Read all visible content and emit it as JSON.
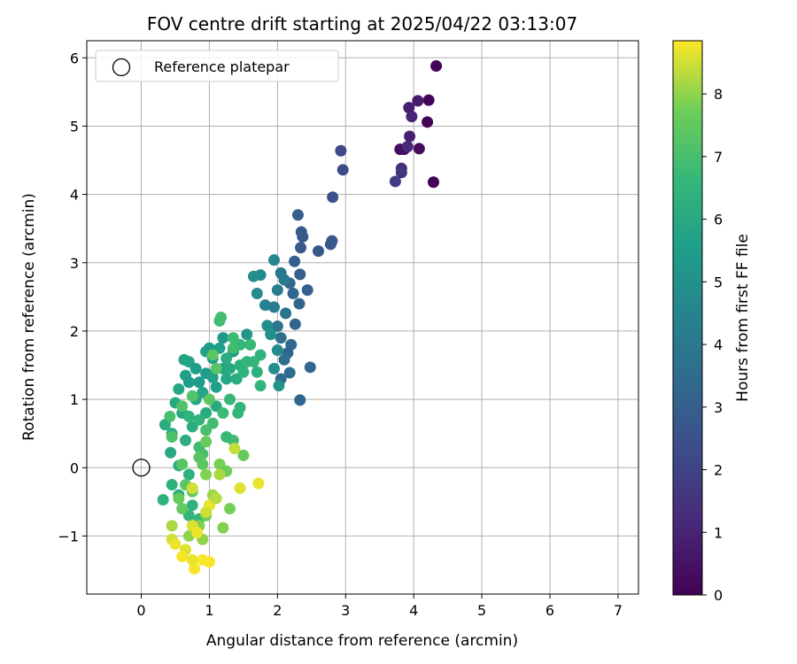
{
  "chart_data": {
    "type": "scatter",
    "title": "FOV centre drift starting at 2025/04/22 03:13:07",
    "xlabel": "Angular distance from reference (arcmin)",
    "ylabel": "Rotation from reference (arcmin)",
    "xlim": [
      -0.8,
      7.3
    ],
    "ylim": [
      -1.85,
      6.25
    ],
    "xticks": [
      0,
      1,
      2,
      3,
      4,
      5,
      6,
      7
    ],
    "yticks": [
      -1,
      0,
      1,
      2,
      3,
      4,
      5,
      6
    ],
    "grid": true,
    "legend": {
      "placement": "upper-left",
      "entries": [
        "Reference platepar"
      ]
    },
    "reference_point": {
      "x": 0,
      "y": 0,
      "label": "Reference platepar"
    },
    "colorbar": {
      "label": "Hours from first FF file",
      "colormap": "viridis",
      "range": [
        0,
        8.85
      ],
      "ticks": [
        0,
        1,
        2,
        3,
        4,
        5,
        6,
        7,
        8
      ]
    },
    "points": [
      {
        "x": 4.33,
        "y": 5.88,
        "t": 0.1
      },
      {
        "x": 4.22,
        "y": 5.38,
        "t": 0.1
      },
      {
        "x": 4.2,
        "y": 5.06,
        "t": 0.1
      },
      {
        "x": 4.29,
        "y": 4.18,
        "t": 0.1
      },
      {
        "x": 4.08,
        "y": 4.67,
        "t": 0.25
      },
      {
        "x": 3.8,
        "y": 4.66,
        "t": 0.3
      },
      {
        "x": 3.86,
        "y": 4.66,
        "t": 0.4
      },
      {
        "x": 4.06,
        "y": 5.37,
        "t": 0.7
      },
      {
        "x": 3.93,
        "y": 5.27,
        "t": 0.8
      },
      {
        "x": 3.94,
        "y": 4.85,
        "t": 0.9
      },
      {
        "x": 3.97,
        "y": 5.14,
        "t": 1.0
      },
      {
        "x": 3.91,
        "y": 4.7,
        "t": 1.1
      },
      {
        "x": 3.82,
        "y": 4.38,
        "t": 1.3
      },
      {
        "x": 3.82,
        "y": 4.32,
        "t": 1.5
      },
      {
        "x": 3.73,
        "y": 4.19,
        "t": 1.8
      },
      {
        "x": 2.93,
        "y": 4.64,
        "t": 2.2
      },
      {
        "x": 2.96,
        "y": 4.36,
        "t": 2.3
      },
      {
        "x": 2.81,
        "y": 3.96,
        "t": 2.5
      },
      {
        "x": 2.8,
        "y": 3.32,
        "t": 2.7
      },
      {
        "x": 2.78,
        "y": 3.27,
        "t": 2.7
      },
      {
        "x": 2.6,
        "y": 3.17,
        "t": 2.7
      },
      {
        "x": 2.35,
        "y": 3.45,
        "t": 2.8
      },
      {
        "x": 2.37,
        "y": 3.38,
        "t": 2.8
      },
      {
        "x": 2.3,
        "y": 3.7,
        "t": 3.0
      },
      {
        "x": 2.34,
        "y": 3.22,
        "t": 2.8
      },
      {
        "x": 2.25,
        "y": 3.02,
        "t": 3.0
      },
      {
        "x": 2.33,
        "y": 2.83,
        "t": 3.0
      },
      {
        "x": 2.44,
        "y": 2.6,
        "t": 3.0
      },
      {
        "x": 2.32,
        "y": 2.4,
        "t": 3.2
      },
      {
        "x": 2.23,
        "y": 2.55,
        "t": 3.3
      },
      {
        "x": 2.18,
        "y": 2.7,
        "t": 3.4
      },
      {
        "x": 2.26,
        "y": 2.1,
        "t": 3.2
      },
      {
        "x": 2.2,
        "y": 1.8,
        "t": 3.3
      },
      {
        "x": 2.15,
        "y": 1.68,
        "t": 3.2
      },
      {
        "x": 2.48,
        "y": 1.47,
        "t": 3.3
      },
      {
        "x": 2.33,
        "y": 0.99,
        "t": 3.3
      },
      {
        "x": 2.05,
        "y": 1.3,
        "t": 3.5
      },
      {
        "x": 2.18,
        "y": 1.39,
        "t": 3.5
      },
      {
        "x": 2.1,
        "y": 1.58,
        "t": 3.6
      },
      {
        "x": 2.05,
        "y": 1.9,
        "t": 3.7
      },
      {
        "x": 2.0,
        "y": 2.07,
        "t": 3.9
      },
      {
        "x": 2.12,
        "y": 2.26,
        "t": 3.8
      },
      {
        "x": 2.05,
        "y": 2.85,
        "t": 4.0
      },
      {
        "x": 2.1,
        "y": 2.75,
        "t": 4.1
      },
      {
        "x": 2.0,
        "y": 2.6,
        "t": 4.2
      },
      {
        "x": 1.95,
        "y": 2.35,
        "t": 4.3
      },
      {
        "x": 1.82,
        "y": 2.38,
        "t": 4.4
      },
      {
        "x": 1.95,
        "y": 3.04,
        "t": 4.6
      },
      {
        "x": 1.75,
        "y": 2.82,
        "t": 4.7
      },
      {
        "x": 1.7,
        "y": 2.55,
        "t": 4.8
      },
      {
        "x": 1.65,
        "y": 2.8,
        "t": 4.9
      },
      {
        "x": 1.85,
        "y": 2.08,
        "t": 4.9
      },
      {
        "x": 1.9,
        "y": 1.95,
        "t": 5.0
      },
      {
        "x": 2.0,
        "y": 1.72,
        "t": 4.8
      },
      {
        "x": 1.95,
        "y": 1.45,
        "t": 4.9
      },
      {
        "x": 2.02,
        "y": 1.2,
        "t": 5.1
      },
      {
        "x": 1.55,
        "y": 1.95,
        "t": 5.2
      },
      {
        "x": 1.35,
        "y": 1.7,
        "t": 5.4
      },
      {
        "x": 1.2,
        "y": 1.9,
        "t": 5.3
      },
      {
        "x": 1.15,
        "y": 1.75,
        "t": 5.6
      },
      {
        "x": 1.05,
        "y": 1.6,
        "t": 5.5
      },
      {
        "x": 0.95,
        "y": 1.7,
        "t": 5.7
      },
      {
        "x": 1.0,
        "y": 1.75,
        "t": 5.5
      },
      {
        "x": 0.7,
        "y": 1.55,
        "t": 5.9
      },
      {
        "x": 0.63,
        "y": 1.58,
        "t": 5.8
      },
      {
        "x": 0.8,
        "y": 1.45,
        "t": 5.6
      },
      {
        "x": 0.65,
        "y": 1.35,
        "t": 5.7
      },
      {
        "x": 0.7,
        "y": 1.25,
        "t": 5.5
      },
      {
        "x": 0.85,
        "y": 1.25,
        "t": 5.5
      },
      {
        "x": 0.95,
        "y": 1.38,
        "t": 5.5
      },
      {
        "x": 1.05,
        "y": 1.32,
        "t": 5.7
      },
      {
        "x": 1.1,
        "y": 1.18,
        "t": 5.6
      },
      {
        "x": 1.2,
        "y": 1.45,
        "t": 5.8
      },
      {
        "x": 1.3,
        "y": 1.45,
        "t": 6.0
      },
      {
        "x": 1.25,
        "y": 1.3,
        "t": 5.9
      },
      {
        "x": 1.4,
        "y": 1.3,
        "t": 6.1
      },
      {
        "x": 0.9,
        "y": 1.1,
        "t": 5.8
      },
      {
        "x": 0.8,
        "y": 1.0,
        "t": 5.9
      },
      {
        "x": 0.55,
        "y": 1.15,
        "t": 5.9
      },
      {
        "x": 0.5,
        "y": 0.95,
        "t": 6.0
      },
      {
        "x": 0.6,
        "y": 0.8,
        "t": 6.0
      },
      {
        "x": 0.35,
        "y": 0.63,
        "t": 6.1
      },
      {
        "x": 0.45,
        "y": 0.5,
        "t": 6.1
      },
      {
        "x": 0.65,
        "y": 0.4,
        "t": 6.1
      },
      {
        "x": 0.43,
        "y": 0.22,
        "t": 6.0
      },
      {
        "x": 0.75,
        "y": 0.6,
        "t": 6.2
      },
      {
        "x": 0.95,
        "y": 0.8,
        "t": 6.1
      },
      {
        "x": 1.1,
        "y": 0.9,
        "t": 6.0
      },
      {
        "x": 0.55,
        "y": 0.03,
        "t": 6.3
      },
      {
        "x": 0.45,
        "y": -0.25,
        "t": 6.3
      },
      {
        "x": 0.55,
        "y": -0.4,
        "t": 6.2
      },
      {
        "x": 0.32,
        "y": -0.47,
        "t": 6.4
      },
      {
        "x": 0.7,
        "y": -0.1,
        "t": 6.3
      },
      {
        "x": 0.75,
        "y": -0.55,
        "t": 6.4
      },
      {
        "x": 0.85,
        "y": -0.75,
        "t": 6.6
      },
      {
        "x": 0.7,
        "y": -0.7,
        "t": 6.5
      },
      {
        "x": 1.45,
        "y": 1.5,
        "t": 6.3
      },
      {
        "x": 1.55,
        "y": 1.55,
        "t": 6.5
      },
      {
        "x": 1.5,
        "y": 1.4,
        "t": 6.4
      },
      {
        "x": 1.65,
        "y": 1.55,
        "t": 6.6
      },
      {
        "x": 1.75,
        "y": 1.65,
        "t": 6.4
      },
      {
        "x": 1.7,
        "y": 1.4,
        "t": 6.3
      },
      {
        "x": 1.75,
        "y": 1.2,
        "t": 6.5
      },
      {
        "x": 1.6,
        "y": 1.8,
        "t": 6.7
      },
      {
        "x": 1.45,
        "y": 1.8,
        "t": 6.6
      },
      {
        "x": 1.35,
        "y": 1.9,
        "t": 6.8
      },
      {
        "x": 1.15,
        "y": 2.15,
        "t": 6.8
      },
      {
        "x": 1.17,
        "y": 2.2,
        "t": 6.9
      },
      {
        "x": 1.42,
        "y": 0.8,
        "t": 6.6
      },
      {
        "x": 1.45,
        "y": 0.88,
        "t": 6.5
      },
      {
        "x": 1.3,
        "y": 1.0,
        "t": 6.7
      },
      {
        "x": 1.2,
        "y": 0.8,
        "t": 6.8
      },
      {
        "x": 1.35,
        "y": 0.4,
        "t": 6.9
      },
      {
        "x": 1.25,
        "y": 0.45,
        "t": 6.7
      },
      {
        "x": 1.05,
        "y": 0.65,
        "t": 6.9
      },
      {
        "x": 0.95,
        "y": 0.55,
        "t": 7.0
      },
      {
        "x": 0.85,
        "y": 0.3,
        "t": 6.9
      },
      {
        "x": 0.9,
        "y": 0.2,
        "t": 7.0
      },
      {
        "x": 0.42,
        "y": 0.75,
        "t": 7.0
      },
      {
        "x": 0.45,
        "y": 0.45,
        "t": 7.1
      },
      {
        "x": 0.6,
        "y": 0.9,
        "t": 7.2
      },
      {
        "x": 0.75,
        "y": 1.05,
        "t": 7.2
      },
      {
        "x": 1.05,
        "y": 1.65,
        "t": 7.4
      },
      {
        "x": 1.1,
        "y": 1.45,
        "t": 7.3
      },
      {
        "x": 1.0,
        "y": 1.0,
        "t": 7.4
      },
      {
        "x": 0.6,
        "y": 0.05,
        "t": 7.3
      },
      {
        "x": 0.65,
        "y": -0.25,
        "t": 7.4
      },
      {
        "x": 0.75,
        "y": -0.35,
        "t": 7.5
      },
      {
        "x": 0.85,
        "y": 0.15,
        "t": 7.3
      },
      {
        "x": 0.9,
        "y": 0.05,
        "t": 7.4
      },
      {
        "x": 0.95,
        "y": 0.38,
        "t": 7.6
      },
      {
        "x": 1.15,
        "y": 0.05,
        "t": 7.8
      },
      {
        "x": 1.25,
        "y": -0.05,
        "t": 7.7
      },
      {
        "x": 1.5,
        "y": 0.18,
        "t": 7.6
      },
      {
        "x": 1.3,
        "y": -0.6,
        "t": 7.8
      },
      {
        "x": 1.2,
        "y": -0.88,
        "t": 7.9
      },
      {
        "x": 1.0,
        "y": -0.55,
        "t": 7.8
      },
      {
        "x": 0.95,
        "y": -0.7,
        "t": 7.7
      },
      {
        "x": 0.85,
        "y": -0.85,
        "t": 7.9
      },
      {
        "x": 0.9,
        "y": -1.05,
        "t": 8.0
      },
      {
        "x": 0.7,
        "y": -1.0,
        "t": 8.0
      },
      {
        "x": 1.05,
        "y": -0.4,
        "t": 8.1
      },
      {
        "x": 1.15,
        "y": -0.1,
        "t": 8.2
      },
      {
        "x": 0.45,
        "y": -0.85,
        "t": 8.2
      },
      {
        "x": 1.37,
        "y": 0.28,
        "t": 8.4
      },
      {
        "x": 1.45,
        "y": -0.3,
        "t": 8.6
      },
      {
        "x": 1.72,
        "y": -0.23,
        "t": 8.7
      },
      {
        "x": 0.75,
        "y": -0.3,
        "t": 8.5
      },
      {
        "x": 1.0,
        "y": -0.55,
        "t": 8.7
      },
      {
        "x": 0.95,
        "y": -0.65,
        "t": 8.5
      },
      {
        "x": 0.75,
        "y": -0.85,
        "t": 8.6
      },
      {
        "x": 0.82,
        "y": -0.95,
        "t": 8.7
      },
      {
        "x": 0.45,
        "y": -1.05,
        "t": 8.5
      },
      {
        "x": 0.5,
        "y": -1.12,
        "t": 8.7
      },
      {
        "x": 0.65,
        "y": -1.2,
        "t": 8.6
      },
      {
        "x": 0.6,
        "y": -1.3,
        "t": 8.8
      },
      {
        "x": 0.78,
        "y": -1.48,
        "t": 8.8
      },
      {
        "x": 0.75,
        "y": -1.35,
        "t": 8.7
      },
      {
        "x": 0.9,
        "y": -1.35,
        "t": 8.8
      },
      {
        "x": 1.0,
        "y": -1.38,
        "t": 8.8
      },
      {
        "x": 0.95,
        "y": -0.1,
        "t": 7.9
      },
      {
        "x": 1.1,
        "y": -0.45,
        "t": 8.3
      },
      {
        "x": 0.55,
        "y": -0.45,
        "t": 7.6
      },
      {
        "x": 0.6,
        "y": -0.6,
        "t": 7.5
      },
      {
        "x": 1.35,
        "y": 1.75,
        "t": 6.9
      },
      {
        "x": 1.25,
        "y": 1.6,
        "t": 6.2
      },
      {
        "x": 0.85,
        "y": 0.7,
        "t": 6.5
      },
      {
        "x": 0.7,
        "y": 0.75,
        "t": 6.4
      }
    ]
  }
}
